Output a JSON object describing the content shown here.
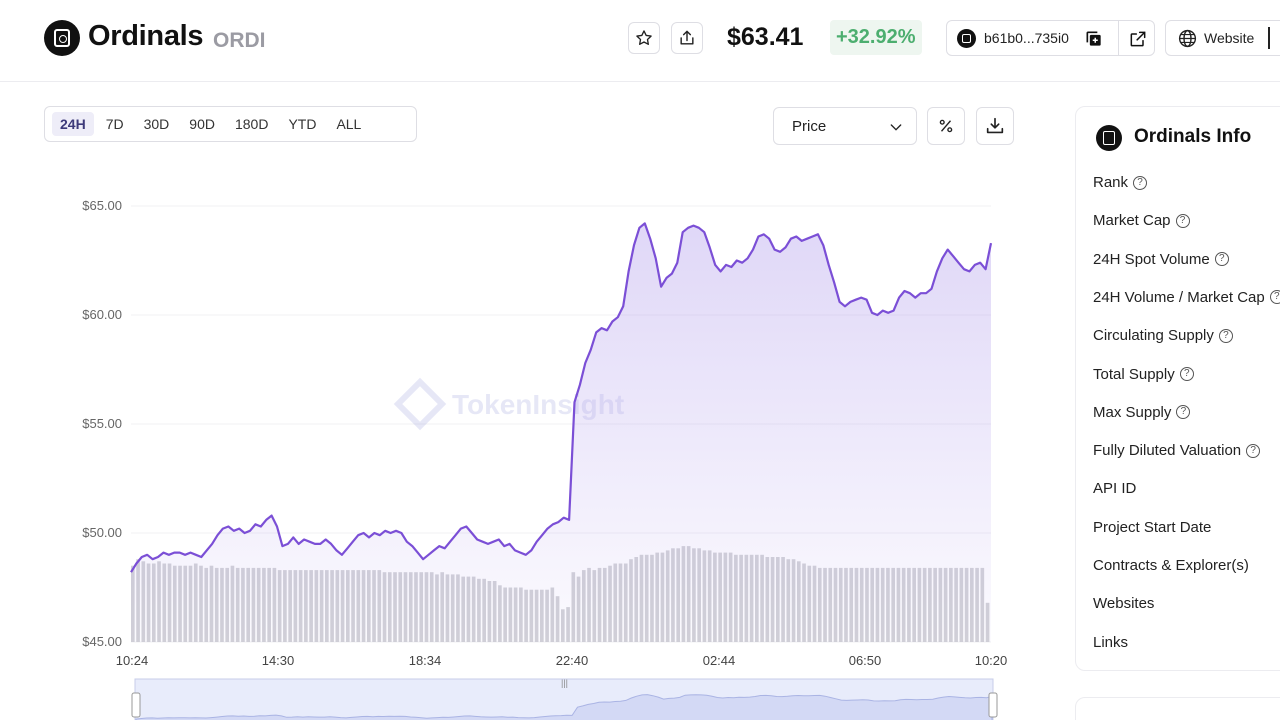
{
  "header": {
    "name": "Ordinals",
    "ticker": "ORDI",
    "price": "$63.41",
    "change": "+32.92%",
    "contract": "b61b0...735i0",
    "website_label": "Website"
  },
  "icons": [
    "star-icon",
    "share-icon",
    "copy-icon",
    "external-link-icon",
    "globe-icon",
    "chevron-down-icon",
    "percent-icon",
    "download-icon",
    "help-icon"
  ],
  "ranges": [
    "24H",
    "7D",
    "30D",
    "90D",
    "180D",
    "YTD",
    "ALL"
  ],
  "active_range": "24H",
  "metric_select": "Price",
  "watermark": "TokenInsight",
  "info": {
    "title": "Ordinals Info",
    "rows": [
      {
        "label": "Rank",
        "help": true
      },
      {
        "label": "Market Cap",
        "help": true
      },
      {
        "label": "24H Spot Volume",
        "help": true
      },
      {
        "label": "24H Volume / Market Cap",
        "help": true
      },
      {
        "label": "Circulating Supply",
        "help": true
      },
      {
        "label": "Total Supply",
        "help": true
      },
      {
        "label": "Max Supply",
        "help": true
      },
      {
        "label": "Fully Diluted Valuation",
        "help": true
      },
      {
        "label": "API ID",
        "help": false
      },
      {
        "label": "Project Start Date",
        "help": false
      },
      {
        "label": "Contracts & Explorer(s)",
        "help": false
      },
      {
        "label": "Websites",
        "help": false
      },
      {
        "label": "Links",
        "help": false
      }
    ]
  },
  "chart_data": {
    "type": "line",
    "ylim": [
      45,
      65
    ],
    "yticks": [
      "$65.00",
      "$60.00",
      "$55.00",
      "$50.00",
      "$45.00"
    ],
    "ytick_values": [
      65,
      60,
      55,
      50,
      45
    ],
    "xticks": [
      "10:24",
      "14:30",
      "18:34",
      "22:40",
      "02:44",
      "06:50",
      "10:20"
    ],
    "series": [
      {
        "values": [
          48.2,
          48.6,
          48.9,
          49.0,
          48.8,
          48.9,
          49.1,
          49.0,
          49.1,
          49.1,
          49.0,
          49.1,
          49.0,
          48.9,
          49.2,
          49.5,
          49.9,
          50.2,
          50.3,
          50.1,
          50.2,
          50.0,
          50.1,
          50.4,
          50.3,
          50.6,
          50.8,
          50.3,
          49.4,
          49.5,
          49.8,
          49.5,
          49.7,
          49.6,
          49.5,
          49.5,
          49.7,
          49.5,
          49.2,
          49.0,
          49.3,
          49.6,
          49.9,
          50.0,
          49.8,
          50.0,
          49.9,
          50.1,
          50.0,
          50.1,
          50.0,
          49.6,
          49.4,
          49.1,
          48.8,
          49.0,
          49.2,
          49.4,
          49.3,
          49.6,
          49.9,
          50.2,
          50.3,
          50.0,
          49.7,
          49.6,
          49.5,
          49.6,
          49.7,
          49.4,
          49.5,
          49.2,
          49.1,
          49.0,
          49.2,
          49.6,
          49.9,
          50.2,
          50.4,
          50.5,
          50.7,
          50.6,
          56.0,
          56.8,
          57.8,
          58.4,
          59.2,
          59.4,
          59.3,
          59.7,
          59.9,
          60.4,
          62.0,
          63.2,
          64.0,
          64.2,
          63.5,
          62.6,
          61.3,
          61.7,
          61.9,
          62.4,
          63.8,
          64.0,
          64.1,
          64.0,
          63.8,
          63.1,
          62.3,
          62.0,
          62.3,
          62.2,
          62.5,
          62.4,
          62.6,
          63.0,
          63.6,
          63.7,
          63.5,
          63.0,
          62.9,
          63.1,
          63.5,
          63.6,
          63.4,
          63.5,
          63.6,
          63.7,
          63.2,
          62.3,
          61.5,
          60.6,
          60.4,
          60.6,
          60.7,
          60.8,
          60.7,
          60.1,
          60.0,
          60.2,
          60.1,
          60.2,
          60.8,
          61.1,
          61.0,
          60.8,
          61.0,
          61.0,
          61.2,
          62.0,
          62.6,
          63.0,
          62.7,
          62.4,
          62.1,
          62.0,
          62.3,
          62.4,
          62.1,
          63.3
        ],
        "color": "#7b4fd6"
      }
    ],
    "volume": [
      48.5,
      48.8,
      48.7,
      48.6,
      48.6,
      48.7,
      48.6,
      48.6,
      48.5,
      48.5,
      48.5,
      48.5,
      48.6,
      48.5,
      48.4,
      48.5,
      48.4,
      48.4,
      48.4,
      48.5,
      48.4,
      48.4,
      48.4,
      48.4,
      48.4,
      48.4,
      48.4,
      48.4,
      48.3,
      48.3,
      48.3,
      48.3,
      48.3,
      48.3,
      48.3,
      48.3,
      48.3,
      48.3,
      48.3,
      48.3,
      48.3,
      48.3,
      48.3,
      48.3,
      48.3,
      48.3,
      48.3,
      48.3,
      48.2,
      48.2,
      48.2,
      48.2,
      48.2,
      48.2,
      48.2,
      48.2,
      48.2,
      48.2,
      48.1,
      48.2,
      48.1,
      48.1,
      48.1,
      48.0,
      48.0,
      48.0,
      47.9,
      47.9,
      47.8,
      47.8,
      47.6,
      47.5,
      47.5,
      47.5,
      47.5,
      47.4,
      47.4,
      47.4,
      47.4,
      47.4,
      47.5,
      47.1,
      46.5,
      46.6,
      48.2,
      48.0,
      48.3,
      48.4,
      48.3,
      48.4,
      48.4,
      48.5,
      48.6,
      48.6,
      48.6,
      48.8,
      48.9,
      49.0,
      49.0,
      49.0,
      49.1,
      49.1,
      49.2,
      49.3,
      49.3,
      49.4,
      49.4,
      49.3,
      49.3,
      49.2,
      49.2,
      49.1,
      49.1,
      49.1,
      49.1,
      49.0,
      49.0,
      49.0,
      49.0,
      49.0,
      49.0,
      48.9,
      48.9,
      48.9,
      48.9,
      48.8,
      48.8,
      48.7,
      48.6,
      48.5,
      48.5,
      48.4,
      48.4,
      48.4,
      48.4,
      48.4,
      48.4,
      48.4,
      48.4,
      48.4,
      48.4,
      48.4,
      48.4,
      48.4,
      48.4,
      48.4,
      48.4,
      48.4,
      48.4,
      48.4,
      48.4,
      48.4,
      48.4,
      48.4,
      48.4,
      48.4,
      48.4,
      48.4,
      48.4,
      48.4,
      48.4,
      48.4,
      48.4,
      46.8
    ],
    "grid": true
  }
}
